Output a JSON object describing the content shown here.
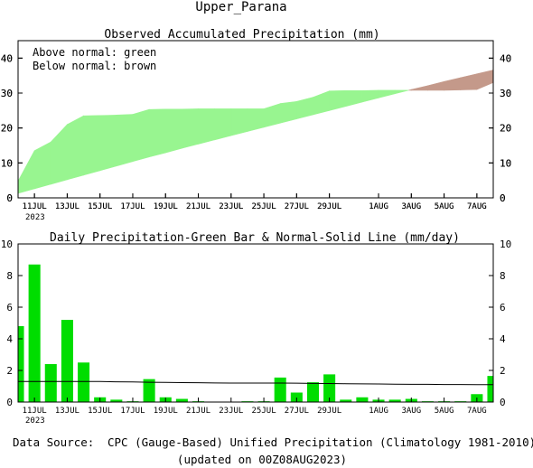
{
  "title": "Upper_Parana",
  "top_title": "Observed Accumulated Precipitation (mm)",
  "legend_green": "Above normal: green",
  "legend_brown": "Below normal: brown",
  "bottom_title": "Daily Precipitation-Green Bar & Normal-Solid Line (mm/day)",
  "year_label": "2023",
  "source_label": "Data Source:",
  "source_text": "CPC (Gauge-Based) Unified Precipitation (Climatology 1981-2010)",
  "updated_text": "(updated on 00Z08AUG2023)",
  "colors": {
    "above": "#98f590",
    "below": "#c4998a",
    "bar": "#00dd00",
    "source_red": "#dd2222"
  },
  "chart_data": [
    {
      "type": "area",
      "title": "Observed Accumulated Precipitation (mm)",
      "x_tick_labels": [
        "11JUL",
        "13JUL",
        "15JUL",
        "17JUL",
        "19JUL",
        "21JUL",
        "23JUL",
        "25JUL",
        "27JUL",
        "29JUL",
        "1AUG",
        "3AUG",
        "5AUG",
        "7AUG"
      ],
      "x_tick_days": [
        1,
        3,
        5,
        7,
        9,
        11,
        13,
        15,
        17,
        19,
        22,
        24,
        26,
        28
      ],
      "x_range_days": [
        0,
        29
      ],
      "ylim": [
        0,
        45
      ],
      "yticks": [
        0,
        10,
        20,
        30,
        40
      ],
      "days": [
        0,
        1,
        2,
        3,
        4,
        5,
        6,
        7,
        8,
        9,
        10,
        11,
        12,
        13,
        14,
        15,
        16,
        17,
        18,
        19,
        20,
        21,
        22,
        23,
        24,
        25,
        26,
        27,
        28,
        29
      ],
      "observed": [
        4.8,
        13.5,
        16.0,
        21.0,
        23.5,
        23.6,
        23.7,
        23.9,
        25.3,
        25.4,
        25.4,
        25.5,
        25.5,
        25.5,
        25.5,
        25.5,
        27.0,
        27.6,
        28.8,
        30.6,
        30.7,
        30.7,
        30.8,
        30.8,
        30.8,
        30.8,
        30.8,
        30.9,
        31.0,
        33.0
      ],
      "normal": [
        1.3,
        2.6,
        3.9,
        5.2,
        6.5,
        7.8,
        9.1,
        10.4,
        11.7,
        12.9,
        14.2,
        15.4,
        16.6,
        17.8,
        19.0,
        20.2,
        21.4,
        22.6,
        23.8,
        25.0,
        26.2,
        27.4,
        28.6,
        29.8,
        31.0,
        32.1,
        33.3,
        34.4,
        35.5,
        36.6
      ]
    },
    {
      "type": "bar",
      "title": "Daily Precipitation-Green Bar & Normal-Solid Line (mm/day)",
      "x_tick_labels": [
        "11JUL",
        "13JUL",
        "15JUL",
        "17JUL",
        "19JUL",
        "21JUL",
        "23JUL",
        "25JUL",
        "27JUL",
        "29JUL",
        "1AUG",
        "3AUG",
        "5AUG",
        "7AUG"
      ],
      "x_tick_days": [
        1,
        3,
        5,
        7,
        9,
        11,
        13,
        15,
        17,
        19,
        22,
        24,
        26,
        28
      ],
      "x_range_days": [
        0,
        29
      ],
      "ylim": [
        0,
        10
      ],
      "yticks": [
        0,
        2,
        4,
        6,
        8,
        10
      ],
      "days": [
        0,
        1,
        2,
        3,
        4,
        5,
        6,
        7,
        8,
        9,
        10,
        11,
        12,
        13,
        14,
        15,
        16,
        17,
        18,
        19,
        20,
        21,
        22,
        23,
        24,
        25,
        26,
        27,
        28,
        29
      ],
      "values": [
        4.8,
        8.7,
        2.4,
        5.2,
        2.5,
        0.3,
        0.15,
        0.05,
        1.45,
        0.3,
        0.2,
        0.05,
        0.0,
        0.0,
        0.05,
        0.05,
        1.55,
        0.6,
        1.25,
        1.75,
        0.15,
        0.3,
        0.15,
        0.15,
        0.2,
        0.05,
        0.05,
        0.05,
        0.5,
        1.65
      ],
      "normal": [
        1.3,
        1.3,
        1.3,
        1.3,
        1.3,
        1.3,
        1.28,
        1.27,
        1.25,
        1.24,
        1.23,
        1.22,
        1.21,
        1.2,
        1.2,
        1.2,
        1.2,
        1.19,
        1.18,
        1.17,
        1.16,
        1.15,
        1.14,
        1.13,
        1.12,
        1.12,
        1.11,
        1.11,
        1.1,
        1.1
      ]
    }
  ]
}
